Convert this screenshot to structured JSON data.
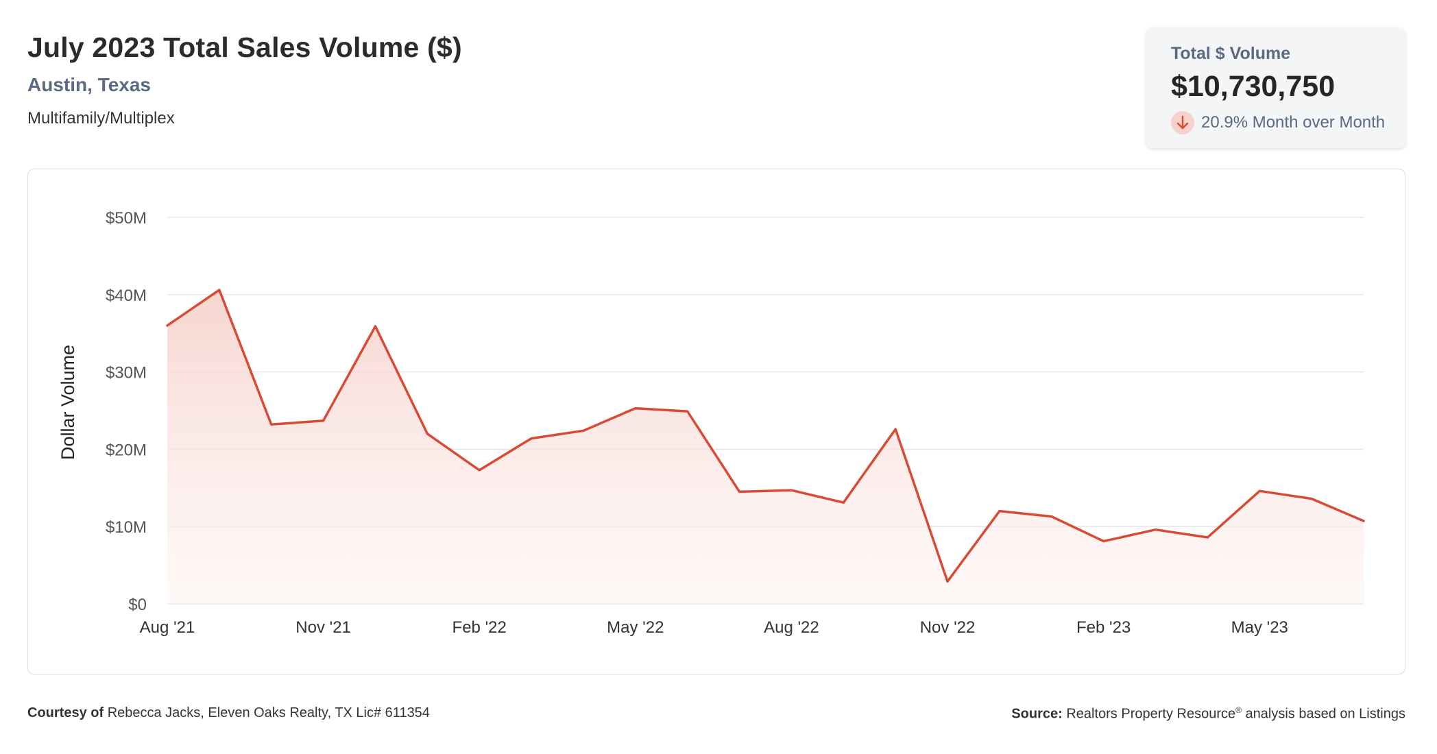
{
  "header": {
    "title": "July 2023 Total Sales Volume ($)",
    "subtitle": "Austin, Texas",
    "category": "Multifamily/Multiplex"
  },
  "kpi": {
    "label": "Total $ Volume",
    "value": "$10,730,750",
    "change": "20.9% Month over Month",
    "direction": "down",
    "arrow_icon": "arrow-down-icon"
  },
  "colors": {
    "line": "#d94a35",
    "area_top": "#f6d3cd",
    "grid": "#e6e6e6",
    "accent_text": "#5a6a84"
  },
  "chart_data": {
    "type": "area",
    "title": "July 2023 Total Sales Volume ($)",
    "ylabel": "Dollar Volume",
    "xlabel": "",
    "x": [
      "Aug '21",
      "Sep '21",
      "Oct '21",
      "Nov '21",
      "Dec '21",
      "Jan '22",
      "Feb '22",
      "Mar '22",
      "Apr '22",
      "May '22",
      "Jun '22",
      "Jul '22",
      "Aug '22",
      "Sep '22",
      "Oct '22",
      "Nov '22",
      "Dec '22",
      "Jan '23",
      "Feb '23",
      "Mar '23",
      "Apr '23",
      "May '23",
      "Jun '23",
      "Jul '23"
    ],
    "x_tick_labels": [
      "Aug '21",
      "Nov '21",
      "Feb '22",
      "May '22",
      "Aug '22",
      "Nov '22",
      "Feb '23",
      "May '23"
    ],
    "y_tick_labels": [
      "$0",
      "$10M",
      "$20M",
      "$30M",
      "$40M",
      "$50M"
    ],
    "y_ticks": [
      0,
      10000000,
      20000000,
      30000000,
      40000000,
      50000000
    ],
    "ylim": [
      0,
      50000000
    ],
    "grid": true,
    "legend": "none",
    "series": [
      {
        "values": [
          36000000,
          40600000,
          23200000,
          23700000,
          35900000,
          22000000,
          17300000,
          21400000,
          22400000,
          25300000,
          24900000,
          14500000,
          14700000,
          13100000,
          22600000,
          2900000,
          12000000,
          11300000,
          8100000,
          9600000,
          8600000,
          14600000,
          13600000,
          10730750
        ]
      }
    ]
  },
  "footer": {
    "courtesy_label": "Courtesy of",
    "courtesy_text": "Rebecca Jacks, Eleven Oaks Realty, TX Lic# 611354",
    "source_label": "Source:",
    "source_name": "Realtors Property Resource",
    "source_mark": "®",
    "source_rest": "analysis based on Listings"
  }
}
